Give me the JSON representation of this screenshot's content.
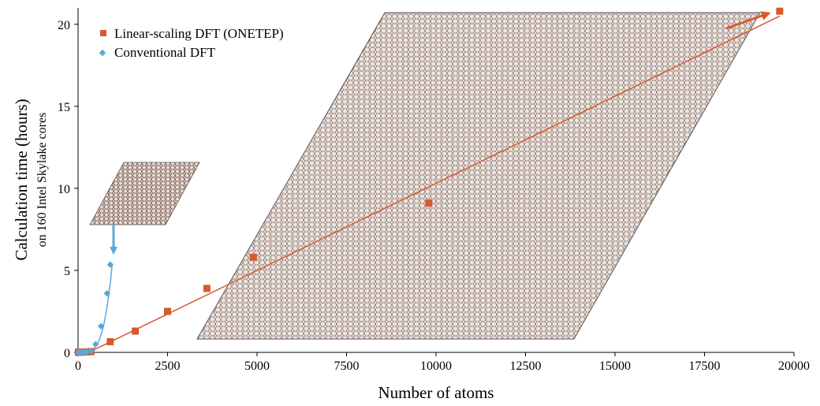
{
  "chart_data": {
    "type": "scatter",
    "title": "",
    "xlabel": "Number of atoms",
    "ylabel": "Calculation time (hours)",
    "ylabel_sub": "on 160 Intel Skylake cores",
    "xlim": [
      0,
      20000
    ],
    "ylim": [
      0,
      21
    ],
    "xticks": [
      0,
      2500,
      5000,
      7500,
      10000,
      12500,
      15000,
      17500,
      20000
    ],
    "yticks": [
      0,
      5,
      10,
      15,
      20
    ],
    "grid": false,
    "legend_position": "top-left",
    "series": [
      {
        "name": "Linear-scaling DFT (ONETEP)",
        "marker": "square",
        "color": "#d65a2d",
        "x": [
          10,
          40,
          90,
          160,
          250,
          360,
          900,
          1600,
          2500,
          3600,
          4900,
          9800,
          19600
        ],
        "y": [
          0.01,
          0.01,
          0.02,
          0.02,
          0.03,
          0.05,
          0.65,
          1.3,
          2.5,
          3.9,
          5.8,
          9.1,
          20.8
        ],
        "trendline": {
          "x": [
            300,
            19600
          ],
          "y": [
            0.0,
            20.5
          ]
        }
      },
      {
        "name": "Conventional DFT",
        "marker": "diamond",
        "color": "#5ba7dc",
        "x": [
          10,
          40,
          90,
          160,
          250,
          360,
          490,
          640,
          810,
          900
        ],
        "y": [
          0.0,
          0.0,
          0.0,
          0.01,
          0.02,
          0.1,
          0.5,
          1.6,
          3.6,
          5.35
        ],
        "trendline_x": [
          0,
          100,
          200,
          300,
          400,
          500,
          600,
          700,
          800,
          900,
          950
        ],
        "trendline_y": [
          0.0,
          0.0,
          0.02,
          0.06,
          0.15,
          0.35,
          0.8,
          1.5,
          2.6,
          4.2,
          5.3
        ]
      }
    ]
  },
  "colors": {
    "axis": "#000000",
    "onetep": "#d65a2d",
    "conventional": "#5ba7dc",
    "lattice_fill": "#e2dcd8",
    "lattice_stroke": "#8a6f63",
    "lattice_border": "#555555"
  }
}
